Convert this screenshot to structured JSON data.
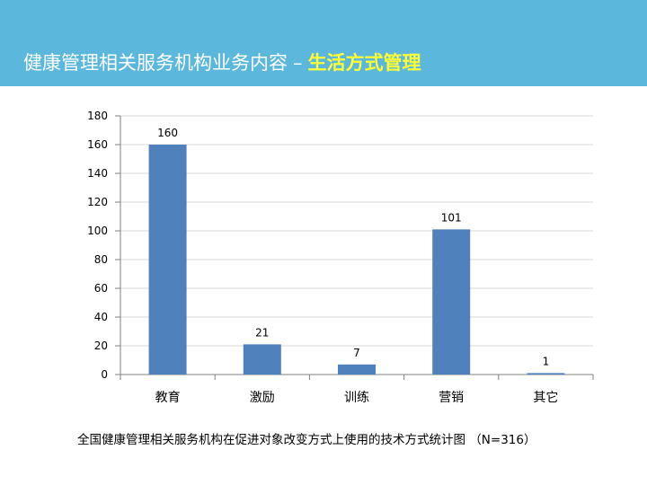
{
  "header": {
    "title_main": "健康管理相关服务机构业务内容",
    "separator": "–",
    "title_highlight": "生活方式管理"
  },
  "colors": {
    "header_bg": "#5bb8dc",
    "highlight_text": "#ffff33",
    "bar_fill": "#4f81bd"
  },
  "caption": "全国健康管理相关服务机构在促进对象改变方式上使用的技术方式统计图 （N=316）",
  "chart_data": {
    "type": "bar",
    "categories": [
      "教育",
      "激励",
      "训练",
      "营销",
      "其它"
    ],
    "values": [
      160,
      21,
      7,
      101,
      1
    ],
    "data_labels": [
      "160",
      "21",
      "7",
      "101",
      "1"
    ],
    "title": "",
    "xlabel": "",
    "ylabel": "",
    "ylim": [
      0,
      180
    ],
    "yticks": [
      "0",
      "20",
      "40",
      "60",
      "80",
      "100",
      "120",
      "140",
      "160",
      "180"
    ],
    "grid": true,
    "legend": "none"
  }
}
